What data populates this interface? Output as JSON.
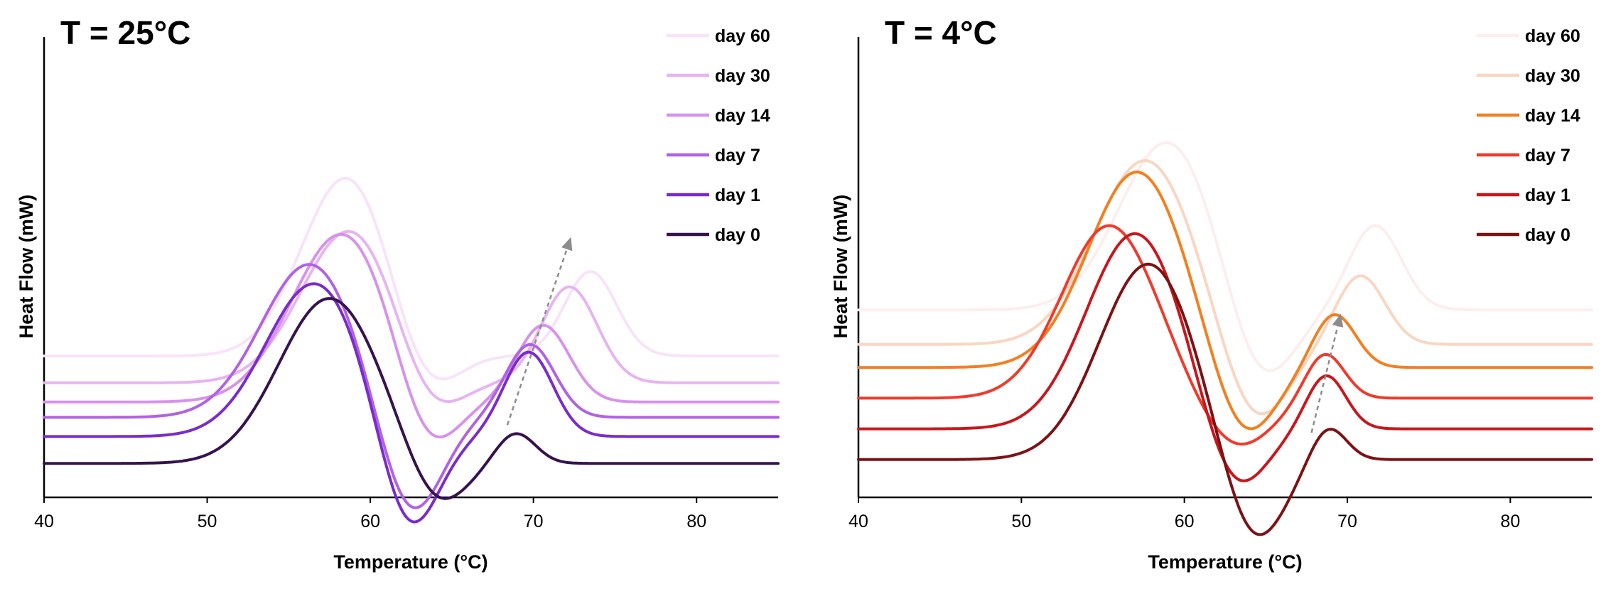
{
  "chart_data": [
    {
      "type": "line",
      "title": "T = 25°C",
      "xlabel": "Temperature (°C)",
      "ylabel": "Heat Flow (mW)",
      "xlim": [
        40,
        85
      ],
      "xticks": [
        "40",
        "50",
        "60",
        "70",
        "80"
      ],
      "ylim": [
        0,
        100
      ],
      "y_ticks_shown": false,
      "grid": false,
      "legend_position": "top-right",
      "arrow": {
        "from": [
          68.4,
          17
        ],
        "to": [
          72.3,
          66
        ]
      },
      "series": [
        {
          "name": "day 60",
          "color": "#f8e3fa",
          "baseline": 35,
          "exo_center": 58.6,
          "exo_height": 47,
          "exo_width": 2.8,
          "dip_center": 63.2,
          "dip_height": 14,
          "dip_width": 1.9,
          "endo_center": 73.5,
          "endo_height": 22,
          "endo_width": 1.6
        },
        {
          "name": "day 30",
          "color": "#e7b4f3",
          "baseline": 28,
          "exo_center": 58.8,
          "exo_height": 40,
          "exo_width": 3.0,
          "dip_center": 63.5,
          "dip_height": 13,
          "dip_width": 1.9,
          "endo_center": 72.2,
          "endo_height": 25,
          "endo_width": 1.7
        },
        {
          "name": "day 14",
          "color": "#d792ec",
          "baseline": 23,
          "exo_center": 58.3,
          "exo_height": 44,
          "exo_width": 3.1,
          "dip_center": 63.4,
          "dip_height": 18,
          "dip_width": 1.8,
          "endo_center": 70.6,
          "endo_height": 20,
          "endo_width": 1.6
        },
        {
          "name": "day 7",
          "color": "#b163e3",
          "baseline": 19,
          "exo_center": 56.3,
          "exo_height": 40,
          "exo_width": 3.0,
          "dip_center": 62.4,
          "dip_height": 28,
          "dip_width": 1.9,
          "endo_center": 69.8,
          "endo_height": 19,
          "endo_width": 1.5
        },
        {
          "name": "day 1",
          "color": "#7a2ccb",
          "baseline": 14,
          "exo_center": 56.6,
          "exo_height": 40,
          "exo_width": 3.0,
          "dip_center": 62.3,
          "dip_height": 28,
          "dip_width": 1.8,
          "endo_center": 69.7,
          "endo_height": 22,
          "endo_width": 1.5
        },
        {
          "name": "day 0",
          "color": "#35134f",
          "baseline": 7,
          "exo_center": 57.5,
          "exo_height": 43,
          "exo_width": 3.1,
          "dip_center": 64.0,
          "dip_height": 13,
          "dip_width": 1.8,
          "endo_center": 68.9,
          "endo_height": 8,
          "endo_width": 1.2
        }
      ]
    },
    {
      "type": "line",
      "title": "T = 4°C",
      "xlabel": "Temperature (°C)",
      "ylabel": "Heat Flow (mW)",
      "xlim": [
        40,
        85
      ],
      "xticks": [
        "40",
        "50",
        "60",
        "70",
        "80"
      ],
      "ylim": [
        0,
        100
      ],
      "y_ticks_shown": false,
      "grid": false,
      "legend_position": "top-right",
      "arrow": {
        "from": [
          67.8,
          15
        ],
        "to": [
          69.6,
          46
        ]
      },
      "series": [
        {
          "name": "day 60",
          "color": "#fdeeee",
          "baseline": 47,
          "exo_center": 59.0,
          "exo_height": 44,
          "exo_width": 3.0,
          "dip_center": 64.6,
          "dip_height": 22,
          "dip_width": 2.0,
          "endo_center": 71.7,
          "endo_height": 22,
          "endo_width": 1.6
        },
        {
          "name": "day 30",
          "color": "#f9d6c2",
          "baseline": 38,
          "exo_center": 57.6,
          "exo_height": 48,
          "exo_width": 3.1,
          "dip_center": 64.3,
          "dip_height": 22,
          "dip_width": 2.0,
          "endo_center": 70.8,
          "endo_height": 18,
          "endo_width": 1.5
        },
        {
          "name": "day 14",
          "color": "#f28020",
          "baseline": 32,
          "exo_center": 57.1,
          "exo_height": 51,
          "exo_width": 3.0,
          "dip_center": 63.6,
          "dip_height": 20,
          "dip_width": 1.9,
          "endo_center": 69.2,
          "endo_height": 14,
          "endo_width": 1.3
        },
        {
          "name": "day 7",
          "color": "#ef3b2c",
          "baseline": 24,
          "exo_center": 55.4,
          "exo_height": 45,
          "exo_width": 2.9,
          "dip_center": 63.2,
          "dip_height": 13,
          "dip_width": 2.2,
          "endo_center": 68.6,
          "endo_height": 12,
          "endo_width": 1.2
        },
        {
          "name": "day 1",
          "color": "#c8171d",
          "baseline": 16,
          "exo_center": 57.0,
          "exo_height": 51,
          "exo_width": 3.0,
          "dip_center": 63.0,
          "dip_height": 19,
          "dip_width": 1.9,
          "endo_center": 68.7,
          "endo_height": 14,
          "endo_width": 1.2
        },
        {
          "name": "day 0",
          "color": "#7c1214",
          "baseline": 8,
          "exo_center": 57.8,
          "exo_height": 51,
          "exo_width": 3.0,
          "dip_center": 64.2,
          "dip_height": 24,
          "dip_width": 1.9,
          "endo_center": 68.8,
          "endo_height": 9,
          "endo_width": 1.1
        }
      ]
    }
  ]
}
